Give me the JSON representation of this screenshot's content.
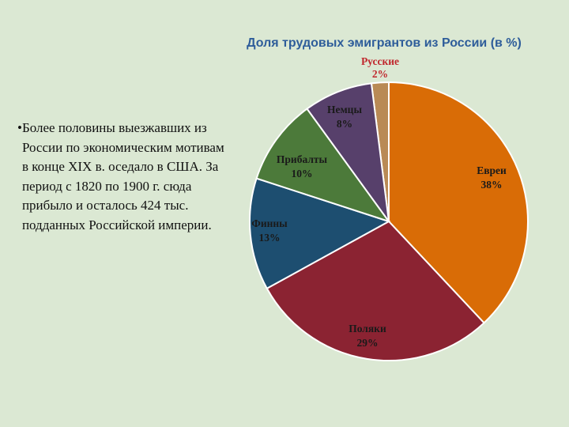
{
  "bullet": {
    "text": "Более половины выезжавших из России по экономическим мотивам в конце XIX в. оседало в США. За период с 1820 по 1900 г. сюда прибыло и осталось 424 тыс. подданных Российской империи."
  },
  "chart_data": {
    "type": "pie",
    "title": "Доля трудовых эмигрантов из России (в %)",
    "slices": [
      {
        "name": "Русские",
        "value": 2,
        "label": "2%",
        "color": "#b98a55",
        "label_color": "#c0272d"
      },
      {
        "name": "Евреи",
        "value": 38,
        "label": "38%",
        "color": "#d96c06",
        "label_color": "#1a1a1a"
      },
      {
        "name": "Поляки",
        "value": 29,
        "label": "29%",
        "color": "#8b2332",
        "label_color": "#1a1a1a"
      },
      {
        "name": "Финны",
        "value": 13,
        "label": "13%",
        "color": "#1d4e70",
        "label_color": "#1a1a1a"
      },
      {
        "name": "Прибалты",
        "value": 10,
        "label": "10%",
        "color": "#4c7a3a",
        "label_color": "#1a1a1a"
      },
      {
        "name": "Немцы",
        "value": 8,
        "label": "8%",
        "color": "#57406b",
        "label_color": "#1a1a1a"
      }
    ]
  }
}
